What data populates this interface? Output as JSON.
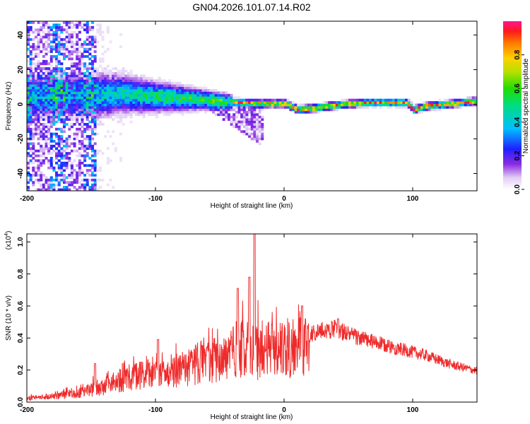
{
  "title": "GN04.2026.101.07.14.R02",
  "colors": {
    "snr_line": "#ee2b2b",
    "frame": "#000000"
  },
  "chart_data": [
    {
      "type": "heatmap",
      "name": "spectrogram",
      "xlabel": "Height of straight line (km)",
      "ylabel": "Frequency (Hz)",
      "xlim": [
        -200,
        150
      ],
      "ylim": [
        -50,
        48
      ],
      "xticks": [
        -200,
        -100,
        0,
        100
      ],
      "xtick_labels": [
        "-200",
        "-100",
        "0",
        "100"
      ],
      "yticks": [
        -40,
        -20,
        0,
        20,
        40
      ],
      "ytick_labels": [
        "-40",
        "-20",
        "0",
        "20",
        "40"
      ],
      "colorbar": {
        "label": "Normalized spectral amplitude",
        "range": [
          0,
          1
        ],
        "ticks": [
          0.0,
          0.2,
          0.4,
          0.6,
          0.8
        ],
        "tick_labels": [
          "0.0",
          "0.2",
          "0.4",
          "0.6",
          "0.8"
        ]
      },
      "ridge": [
        {
          "x": -170,
          "f": 5
        },
        {
          "x": -150,
          "f": 5
        },
        {
          "x": -130,
          "f": 6
        },
        {
          "x": -110,
          "f": 5
        },
        {
          "x": -90,
          "f": 4
        },
        {
          "x": -70,
          "f": 3
        },
        {
          "x": -50,
          "f": 2
        },
        {
          "x": -35,
          "f": 1
        },
        {
          "x": -20,
          "f": 0.5
        },
        {
          "x": 0,
          "f": 0.5
        },
        {
          "x": 10,
          "f": -3
        },
        {
          "x": 25,
          "f": -2
        },
        {
          "x": 45,
          "f": 0
        },
        {
          "x": 65,
          "f": 1
        },
        {
          "x": 80,
          "f": 1
        },
        {
          "x": 95,
          "f": 1
        },
        {
          "x": 100,
          "f": -3
        },
        {
          "x": 110,
          "f": -1
        },
        {
          "x": 125,
          "f": 0
        },
        {
          "x": 150,
          "f": 2
        }
      ]
    },
    {
      "type": "line",
      "name": "snr",
      "xlabel": "Height of straight line (km)",
      "ylabel": "SNR (10 * v/v)",
      "exponent_label": "(x10",
      "exponent_power": "4",
      "exponent_close": ")",
      "xlim": [
        -200,
        150
      ],
      "ylim": [
        0,
        1.05
      ],
      "xticks": [
        -200,
        -100,
        0,
        100
      ],
      "xtick_labels": [
        "-200",
        "-100",
        "0",
        "100"
      ],
      "yticks": [
        0.0,
        0.2,
        0.4,
        0.6,
        0.8,
        1.0
      ],
      "ytick_labels": [
        "0.0",
        "0.2",
        "0.4",
        "0.6",
        "0.8",
        "1.0"
      ],
      "envelope": [
        {
          "x": -200,
          "y": 0.03
        },
        {
          "x": -180,
          "y": 0.04
        },
        {
          "x": -160,
          "y": 0.07
        },
        {
          "x": -146,
          "y": 0.1
        },
        {
          "x": -130,
          "y": 0.16
        },
        {
          "x": -110,
          "y": 0.22
        },
        {
          "x": -95,
          "y": 0.2
        },
        {
          "x": -80,
          "y": 0.25
        },
        {
          "x": -60,
          "y": 0.3
        },
        {
          "x": -45,
          "y": 0.36
        },
        {
          "x": -35,
          "y": 0.42
        },
        {
          "x": -25,
          "y": 0.38
        },
        {
          "x": -10,
          "y": 0.4
        },
        {
          "x": 0,
          "y": 0.4
        },
        {
          "x": 10,
          "y": 0.4
        },
        {
          "x": 25,
          "y": 0.45
        },
        {
          "x": 40,
          "y": 0.47
        },
        {
          "x": 55,
          "y": 0.42
        },
        {
          "x": 80,
          "y": 0.36
        },
        {
          "x": 110,
          "y": 0.3
        },
        {
          "x": 130,
          "y": 0.24
        },
        {
          "x": 150,
          "y": 0.2
        }
      ],
      "peaks": [
        {
          "x": -147,
          "y": 0.24
        },
        {
          "x": -98,
          "y": 0.39
        },
        {
          "x": -36,
          "y": 0.71
        },
        {
          "x": -27,
          "y": 0.78
        },
        {
          "x": -23,
          "y": 1.05
        },
        {
          "x": 14,
          "y": 0.6
        },
        {
          "x": 42,
          "y": 0.52
        }
      ]
    }
  ]
}
